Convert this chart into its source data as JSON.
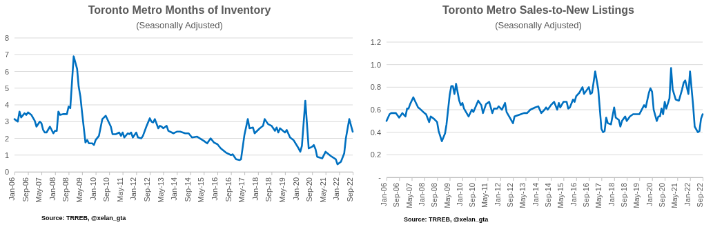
{
  "chart_data": [
    {
      "type": "line",
      "title": "Toronto Metro Months of Inventory",
      "subtitle": "(Seasonally Adjusted)",
      "annotations": [
        "Source: TRREB, @xelan_gta"
      ],
      "xlim": [
        "2006-01",
        "2022-09"
      ],
      "xticks": [
        {
          "value": "2006-01",
          "label": "Jan-06"
        },
        {
          "value": "2006-09",
          "label": "Sep-06"
        },
        {
          "value": "2007-05",
          "label": "May-07"
        },
        {
          "value": "2008-01",
          "label": "Jan-08"
        },
        {
          "value": "2008-09",
          "label": "Sep-08"
        },
        {
          "value": "2009-05",
          "label": "May-09"
        },
        {
          "value": "2010-01",
          "label": "Jan-10"
        },
        {
          "value": "2010-09",
          "label": "Sep-10"
        },
        {
          "value": "2011-05",
          "label": "May-11"
        },
        {
          "value": "2012-01",
          "label": "Jan-12"
        },
        {
          "value": "2012-09",
          "label": "Sep-12"
        },
        {
          "value": "2013-05",
          "label": "May-13"
        },
        {
          "value": "2014-01",
          "label": "Jan-14"
        },
        {
          "value": "2014-09",
          "label": "Sep-14"
        },
        {
          "value": "2015-05",
          "label": "May-15"
        },
        {
          "value": "2016-01",
          "label": "Jan-16"
        },
        {
          "value": "2016-09",
          "label": "Sep-16"
        },
        {
          "value": "2017-05",
          "label": "May-17"
        },
        {
          "value": "2018-01",
          "label": "Jan-18"
        },
        {
          "value": "2018-09",
          "label": "Sep-18"
        },
        {
          "value": "2019-05",
          "label": "May-19"
        },
        {
          "value": "2020-01",
          "label": "Jan-20"
        },
        {
          "value": "2020-09",
          "label": "Sep-20"
        },
        {
          "value": "2021-05",
          "label": "May-21"
        },
        {
          "value": "2022-01",
          "label": "Jan-22"
        },
        {
          "value": "2022-09",
          "label": "Sep-22"
        }
      ],
      "ylim": [
        0,
        8
      ],
      "yticks": [
        0,
        1,
        2,
        3,
        4,
        5,
        6,
        7,
        8
      ],
      "grid": "y",
      "color": "#0070c0",
      "x": [
        "2006-01",
        "2006-03",
        "2006-04",
        "2006-05",
        "2006-07",
        "2006-08",
        "2006-09",
        "2006-11",
        "2007-01",
        "2007-02",
        "2007-04",
        "2007-05",
        "2007-06",
        "2007-07",
        "2007-08",
        "2007-10",
        "2007-12",
        "2008-01",
        "2008-02",
        "2008-03",
        "2008-04",
        "2008-06",
        "2008-08",
        "2008-09",
        "2008-10",
        "2008-12",
        "2009-02",
        "2009-03",
        "2009-04",
        "2009-05",
        "2009-07",
        "2009-08",
        "2009-09",
        "2009-11",
        "2009-12",
        "2010-01",
        "2010-03",
        "2010-05",
        "2010-07",
        "2010-10",
        "2010-11",
        "2011-01",
        "2011-03",
        "2011-04",
        "2011-05",
        "2011-06",
        "2011-08",
        "2011-09",
        "2011-10",
        "2011-11",
        "2012-01",
        "2012-02",
        "2012-04",
        "2012-05",
        "2012-07",
        "2012-09",
        "2012-10",
        "2012-11",
        "2012-12",
        "2013-02",
        "2013-03",
        "2013-04",
        "2013-05",
        "2013-07",
        "2013-08",
        "2013-10",
        "2013-11",
        "2014-01",
        "2014-03",
        "2014-06",
        "2014-08",
        "2014-10",
        "2015-01",
        "2015-05",
        "2015-07",
        "2015-09",
        "2015-11",
        "2016-01",
        "2016-03",
        "2016-06",
        "2016-09",
        "2016-10",
        "2016-12",
        "2017-02",
        "2017-03",
        "2017-05",
        "2017-07",
        "2017-08",
        "2017-10",
        "2017-11",
        "2018-02",
        "2018-04",
        "2018-05",
        "2018-07",
        "2018-09",
        "2018-11",
        "2018-12",
        "2019-01",
        "2019-02",
        "2019-05",
        "2019-06",
        "2019-08",
        "2019-10",
        "2020-01",
        "2020-02",
        "2020-03",
        "2020-05",
        "2020-07",
        "2020-09",
        "2020-10",
        "2020-11",
        "2020-12",
        "2021-03",
        "2021-05",
        "2021-08",
        "2021-11",
        "2021-12",
        "2022-02",
        "2022-04",
        "2022-05",
        "2022-07",
        "2022-09"
      ],
      "values": [
        3.15,
        3.0,
        3.6,
        3.25,
        3.5,
        3.4,
        3.55,
        3.4,
        3.05,
        2.7,
        3.0,
        2.9,
        2.5,
        2.35,
        2.35,
        2.7,
        2.3,
        2.45,
        2.45,
        3.6,
        3.4,
        3.45,
        3.45,
        3.9,
        3.8,
        6.9,
        6.15,
        5.1,
        4.5,
        3.55,
        1.75,
        1.9,
        1.7,
        1.7,
        1.6,
        1.9,
        2.15,
        3.15,
        3.35,
        2.7,
        2.25,
        2.25,
        2.35,
        2.15,
        2.35,
        2.05,
        2.3,
        2.25,
        2.35,
        2.05,
        2.35,
        2.05,
        2.0,
        2.15,
        2.7,
        3.2,
        3.0,
        2.95,
        3.15,
        2.6,
        2.75,
        2.7,
        2.6,
        2.75,
        2.45,
        2.35,
        2.3,
        2.4,
        2.4,
        2.3,
        2.3,
        2.05,
        2.1,
        1.85,
        1.7,
        2.0,
        1.75,
        1.65,
        1.4,
        1.15,
        1.0,
        1.05,
        0.75,
        0.7,
        0.75,
        2.2,
        3.15,
        2.6,
        2.65,
        2.3,
        2.6,
        2.75,
        3.15,
        2.85,
        2.75,
        2.45,
        2.65,
        2.35,
        2.6,
        2.35,
        2.5,
        2.05,
        1.9,
        1.4,
        1.2,
        1.55,
        4.25,
        1.4,
        1.5,
        1.6,
        1.35,
        0.9,
        0.8,
        1.2,
        0.95,
        0.75,
        0.45,
        0.6,
        1.1,
        2.0,
        3.15,
        2.4
      ]
    },
    {
      "type": "line",
      "title": "Toronto Metro Sales-to-New Listings",
      "subtitle": "(Seasonally Adjusted)",
      "annotations": [
        "Source: TRREB, @xelan_gta"
      ],
      "xlim": [
        "2006-01",
        "2022-09"
      ],
      "xticks": [
        {
          "value": "2006-01",
          "label": "Jan-06"
        },
        {
          "value": "2006-09",
          "label": "Sep-06"
        },
        {
          "value": "2007-05",
          "label": "May-07"
        },
        {
          "value": "2008-01",
          "label": "Jan-08"
        },
        {
          "value": "2008-09",
          "label": "Sep-08"
        },
        {
          "value": "2009-05",
          "label": "May-09"
        },
        {
          "value": "2010-01",
          "label": "Jan-10"
        },
        {
          "value": "2010-09",
          "label": "Sep-10"
        },
        {
          "value": "2011-05",
          "label": "May-11"
        },
        {
          "value": "2012-01",
          "label": "Jan-12"
        },
        {
          "value": "2012-09",
          "label": "Sep-12"
        },
        {
          "value": "2013-05",
          "label": "May-13"
        },
        {
          "value": "2014-01",
          "label": "Jan-14"
        },
        {
          "value": "2014-09",
          "label": "Sep-14"
        },
        {
          "value": "2015-05",
          "label": "May-15"
        },
        {
          "value": "2016-01",
          "label": "Jan-16"
        },
        {
          "value": "2016-09",
          "label": "Sep-16"
        },
        {
          "value": "2017-05",
          "label": "May-17"
        },
        {
          "value": "2018-01",
          "label": "Jan-18"
        },
        {
          "value": "2018-09",
          "label": "Sep-18"
        },
        {
          "value": "2019-05",
          "label": "May-19"
        },
        {
          "value": "2020-01",
          "label": "Jan-20"
        },
        {
          "value": "2020-09",
          "label": "Sep-20"
        },
        {
          "value": "2021-05",
          "label": "May-21"
        },
        {
          "value": "2022-01",
          "label": "Jan-22"
        },
        {
          "value": "2022-09",
          "label": "Sep-22"
        }
      ],
      "ylim": [
        0,
        1.2
      ],
      "yticks": [
        {
          "value": 0,
          "label": "-"
        },
        0.2,
        0.4,
        0.6,
        0.8,
        {
          "value": 1.0,
          "label": "1.0"
        },
        1.2
      ],
      "grid": "y",
      "color": "#0070c0",
      "x": [
        "2006-01",
        "2006-03",
        "2006-04",
        "2006-07",
        "2006-09",
        "2006-11",
        "2007-01",
        "2007-02",
        "2007-03",
        "2007-04",
        "2007-06",
        "2007-07",
        "2007-09",
        "2007-10",
        "2008-01",
        "2008-02",
        "2008-04",
        "2008-05",
        "2008-07",
        "2008-09",
        "2008-10",
        "2008-12",
        "2009-02",
        "2009-03",
        "2009-05",
        "2009-06",
        "2009-07",
        "2009-08",
        "2009-09",
        "2009-11",
        "2009-12",
        "2010-01",
        "2010-02",
        "2010-05",
        "2010-07",
        "2010-08",
        "2010-11",
        "2011-01",
        "2011-02",
        "2011-04",
        "2011-06",
        "2011-08",
        "2011-09",
        "2011-11",
        "2011-12",
        "2012-02",
        "2012-04",
        "2012-05",
        "2012-07",
        "2012-09",
        "2012-10",
        "2013-02",
        "2013-04",
        "2013-06",
        "2013-08",
        "2013-11",
        "2014-01",
        "2014-03",
        "2014-05",
        "2014-06",
        "2014-07",
        "2014-09",
        "2014-11",
        "2015-01",
        "2015-02",
        "2015-03",
        "2015-05",
        "2015-07",
        "2015-08",
        "2015-09",
        "2015-11",
        "2015-12",
        "2016-01",
        "2016-03",
        "2016-05",
        "2016-06",
        "2016-07",
        "2016-09",
        "2016-10",
        "2016-11",
        "2017-01",
        "2017-03",
        "2017-05",
        "2017-06",
        "2017-07",
        "2017-08",
        "2017-09",
        "2017-11",
        "2018-01",
        "2018-02",
        "2018-04",
        "2018-05",
        "2018-06",
        "2018-08",
        "2018-09",
        "2018-11",
        "2019-01",
        "2019-05",
        "2019-08",
        "2019-09",
        "2019-11",
        "2019-12",
        "2020-01",
        "2020-02",
        "2020-04",
        "2020-05",
        "2020-06",
        "2020-07",
        "2020-08",
        "2020-09",
        "2020-10",
        "2020-12",
        "2021-01",
        "2021-02",
        "2021-04",
        "2021-06",
        "2021-08",
        "2021-09",
        "2021-10",
        "2021-12",
        "2022-01",
        "2022-03",
        "2022-04",
        "2022-06",
        "2022-07",
        "2022-08",
        "2022-09"
      ],
      "values": [
        0.5,
        0.56,
        0.57,
        0.57,
        0.53,
        0.57,
        0.54,
        0.61,
        0.61,
        0.65,
        0.71,
        0.68,
        0.62,
        0.61,
        0.57,
        0.56,
        0.49,
        0.54,
        0.52,
        0.49,
        0.41,
        0.32,
        0.39,
        0.47,
        0.73,
        0.81,
        0.81,
        0.74,
        0.83,
        0.68,
        0.64,
        0.66,
        0.61,
        0.54,
        0.6,
        0.58,
        0.68,
        0.64,
        0.57,
        0.65,
        0.67,
        0.57,
        0.61,
        0.61,
        0.63,
        0.6,
        0.66,
        0.58,
        0.53,
        0.48,
        0.54,
        0.56,
        0.57,
        0.57,
        0.6,
        0.62,
        0.63,
        0.57,
        0.6,
        0.62,
        0.6,
        0.64,
        0.67,
        0.6,
        0.66,
        0.62,
        0.67,
        0.67,
        0.61,
        0.62,
        0.69,
        0.67,
        0.72,
        0.75,
        0.8,
        0.74,
        0.76,
        0.8,
        0.74,
        0.75,
        0.94,
        0.78,
        0.43,
        0.4,
        0.41,
        0.53,
        0.48,
        0.47,
        0.62,
        0.53,
        0.51,
        0.45,
        0.5,
        0.54,
        0.5,
        0.54,
        0.56,
        0.56,
        0.64,
        0.62,
        0.75,
        0.79,
        0.76,
        0.6,
        0.5,
        0.54,
        0.54,
        0.61,
        0.56,
        0.67,
        0.61,
        0.7,
        0.97,
        0.78,
        0.69,
        0.68,
        0.78,
        0.84,
        0.86,
        0.74,
        0.94,
        0.64,
        0.45,
        0.4,
        0.41,
        0.52,
        0.56
      ]
    }
  ]
}
